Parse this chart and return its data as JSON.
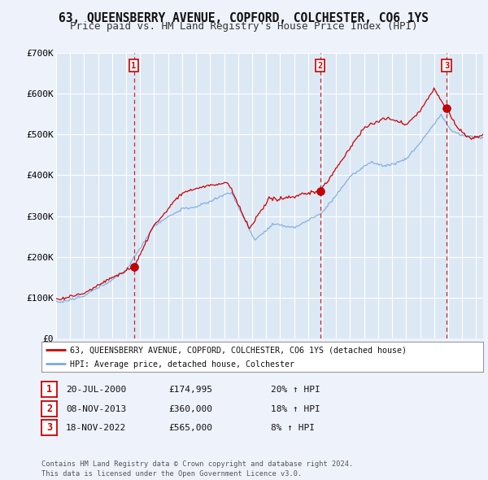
{
  "title": "63, QUEENSBERRY AVENUE, COPFORD, COLCHESTER, CO6 1YS",
  "subtitle": "Price paid vs. HM Land Registry's House Price Index (HPI)",
  "ylim": [
    0,
    700000
  ],
  "yticks": [
    0,
    100000,
    200000,
    300000,
    400000,
    500000,
    600000,
    700000
  ],
  "ytick_labels": [
    "£0",
    "£100K",
    "£200K",
    "£300K",
    "£400K",
    "£500K",
    "£600K",
    "£700K"
  ],
  "xlim_start": 1995.0,
  "xlim_end": 2025.5,
  "background_color": "#eef2fb",
  "plot_bg_color": "#dde8f5",
  "grid_color": "#ffffff",
  "sale_dates": [
    2000.55,
    2013.86,
    2022.89
  ],
  "sale_prices": [
    174995,
    360000,
    565000
  ],
  "sale_labels": [
    "1",
    "2",
    "3"
  ],
  "sale_date_strs": [
    "20-JUL-2000",
    "08-NOV-2013",
    "18-NOV-2022"
  ],
  "sale_price_strs": [
    "£174,995",
    "£360,000",
    "£565,000"
  ],
  "sale_hpi_strs": [
    "20% ↑ HPI",
    "18% ↑ HPI",
    "8% ↑ HPI"
  ],
  "line_color_property": "#cc0000",
  "line_color_hpi": "#7aaadd",
  "legend_label_property": "63, QUEENSBERRY AVENUE, COPFORD, COLCHESTER, CO6 1YS (detached house)",
  "legend_label_hpi": "HPI: Average price, detached house, Colchester",
  "footer_text": "Contains HM Land Registry data © Crown copyright and database right 2024.\nThis data is licensed under the Open Government Licence v3.0.",
  "title_fontsize": 10.5,
  "subtitle_fontsize": 9.0
}
